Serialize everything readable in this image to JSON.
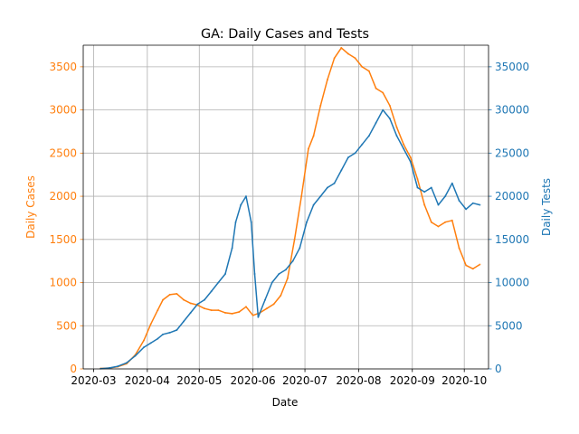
{
  "chart_data": {
    "type": "line",
    "title": "GA: Daily Cases and Tests",
    "xlabel": "Date",
    "ylabel_left": "Daily Cases",
    "ylabel_right": "Daily Tests",
    "x_ticks": [
      "2020-03",
      "2020-04",
      "2020-05",
      "2020-06",
      "2020-07",
      "2020-08",
      "2020-09",
      "2020-10"
    ],
    "ylim_left": [
      0,
      3750
    ],
    "ylim_right": [
      0,
      37500
    ],
    "yticks_left": [
      "0",
      "500",
      "1000",
      "1500",
      "2000",
      "2500",
      "3000",
      "3500"
    ],
    "yticks_right": [
      "0",
      "5000",
      "10000",
      "15000",
      "20000",
      "25000",
      "30000",
      "35000"
    ],
    "grid": true,
    "colors": {
      "cases": "#ff7f0e",
      "tests": "#1f77b4",
      "axis": "#000000"
    },
    "series": [
      {
        "axis": "left",
        "color": "#ff7f0e",
        "x": [
          "2020-03-05",
          "2020-03-10",
          "2020-03-15",
          "2020-03-20",
          "2020-03-25",
          "2020-03-30",
          "2020-04-03",
          "2020-04-07",
          "2020-04-10",
          "2020-04-14",
          "2020-04-18",
          "2020-04-22",
          "2020-04-26",
          "2020-04-30",
          "2020-05-04",
          "2020-05-08",
          "2020-05-12",
          "2020-05-16",
          "2020-05-20",
          "2020-05-24",
          "2020-05-28",
          "2020-06-01",
          "2020-06-05",
          "2020-06-09",
          "2020-06-13",
          "2020-06-17",
          "2020-06-21",
          "2020-06-25",
          "2020-06-29",
          "2020-07-03",
          "2020-07-06",
          "2020-07-10",
          "2020-07-14",
          "2020-07-18",
          "2020-07-22",
          "2020-07-26",
          "2020-07-30",
          "2020-08-03",
          "2020-08-07",
          "2020-08-11",
          "2020-08-15",
          "2020-08-19",
          "2020-08-23",
          "2020-08-27",
          "2020-08-31",
          "2020-09-04",
          "2020-09-08",
          "2020-09-12",
          "2020-09-16",
          "2020-09-20",
          "2020-09-24",
          "2020-09-28",
          "2020-10-02",
          "2020-10-06",
          "2020-10-10"
        ],
        "y": [
          5,
          10,
          25,
          60,
          160,
          330,
          520,
          680,
          800,
          860,
          870,
          800,
          760,
          740,
          700,
          680,
          680,
          650,
          640,
          660,
          720,
          620,
          650,
          700,
          750,
          850,
          1050,
          1500,
          2000,
          2550,
          2700,
          3050,
          3350,
          3600,
          3720,
          3650,
          3600,
          3500,
          3450,
          3250,
          3200,
          3050,
          2800,
          2600,
          2450,
          2200,
          1900,
          1700,
          1650,
          1700,
          1720,
          1400,
          1200,
          1160,
          1210
        ]
      },
      {
        "axis": "right",
        "color": "#1f77b4",
        "x": [
          "2020-03-05",
          "2020-03-10",
          "2020-03-15",
          "2020-03-20",
          "2020-03-25",
          "2020-03-30",
          "2020-04-03",
          "2020-04-07",
          "2020-04-10",
          "2020-04-14",
          "2020-04-18",
          "2020-04-22",
          "2020-04-26",
          "2020-04-30",
          "2020-05-04",
          "2020-05-08",
          "2020-05-12",
          "2020-05-16",
          "2020-05-20",
          "2020-05-22",
          "2020-05-25",
          "2020-05-28",
          "2020-05-31",
          "2020-06-02",
          "2020-06-04",
          "2020-06-08",
          "2020-06-12",
          "2020-06-16",
          "2020-06-20",
          "2020-06-24",
          "2020-06-28",
          "2020-07-02",
          "2020-07-06",
          "2020-07-10",
          "2020-07-14",
          "2020-07-18",
          "2020-07-22",
          "2020-07-26",
          "2020-07-30",
          "2020-08-03",
          "2020-08-07",
          "2020-08-11",
          "2020-08-15",
          "2020-08-19",
          "2020-08-23",
          "2020-08-27",
          "2020-08-31",
          "2020-09-04",
          "2020-09-08",
          "2020-09-12",
          "2020-09-16",
          "2020-09-20",
          "2020-09-24",
          "2020-09-28",
          "2020-10-02",
          "2020-10-06",
          "2020-10-10"
        ],
        "y": [
          20,
          100,
          300,
          700,
          1500,
          2500,
          3000,
          3500,
          4000,
          4200,
          4500,
          5500,
          6500,
          7500,
          8000,
          9000,
          10000,
          11000,
          14000,
          17000,
          19000,
          20000,
          17000,
          11000,
          6000,
          8000,
          10000,
          11000,
          11500,
          12500,
          14000,
          17000,
          19000,
          20000,
          21000,
          21500,
          23000,
          24500,
          25000,
          26000,
          27000,
          28500,
          30000,
          29000,
          27000,
          25500,
          24000,
          21000,
          20500,
          21000,
          19000,
          20000,
          21500,
          19500,
          18500,
          19200,
          19000
        ]
      }
    ]
  }
}
